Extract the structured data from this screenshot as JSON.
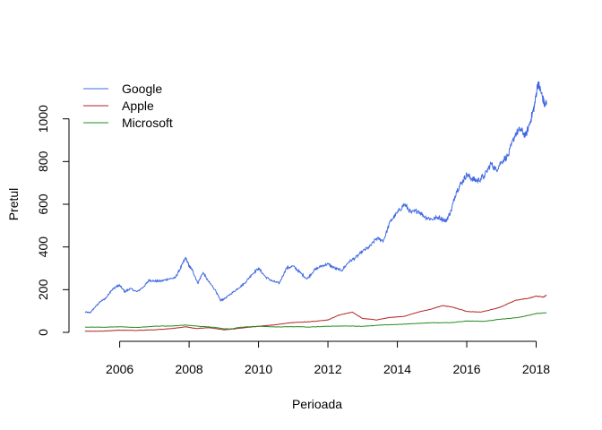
{
  "chart_data": {
    "type": "line",
    "title": "",
    "xlabel": "Perioada",
    "ylabel": "Pretul",
    "xlim": [
      2004.9,
      2018.4
    ],
    "ylim": [
      0,
      1200
    ],
    "x_ticks": [
      2006,
      2008,
      2010,
      2012,
      2014,
      2016,
      2018
    ],
    "x_tick_labels": [
      "2006",
      "2008",
      "2010",
      "2012",
      "2014",
      "2016",
      "2018"
    ],
    "y_ticks": [
      0,
      200,
      400,
      600,
      800,
      1000
    ],
    "y_tick_labels": [
      "0",
      "200",
      "400",
      "600",
      "800",
      "1000"
    ],
    "grid": false,
    "legend_position": "top-left",
    "legend_border": false,
    "series": [
      {
        "name": "Google",
        "color": "#4169E1",
        "points": [
          [
            2005.0,
            95
          ],
          [
            2005.15,
            92
          ],
          [
            2005.3,
            120
          ],
          [
            2005.45,
            145
          ],
          [
            2005.6,
            160
          ],
          [
            2005.75,
            195
          ],
          [
            2005.9,
            215
          ],
          [
            2006.0,
            220
          ],
          [
            2006.15,
            190
          ],
          [
            2006.3,
            205
          ],
          [
            2006.5,
            190
          ],
          [
            2006.7,
            215
          ],
          [
            2006.85,
            245
          ],
          [
            2007.0,
            240
          ],
          [
            2007.2,
            240
          ],
          [
            2007.4,
            250
          ],
          [
            2007.6,
            255
          ],
          [
            2007.75,
            300
          ],
          [
            2007.9,
            350
          ],
          [
            2008.0,
            310
          ],
          [
            2008.1,
            290
          ],
          [
            2008.25,
            230
          ],
          [
            2008.4,
            280
          ],
          [
            2008.55,
            240
          ],
          [
            2008.75,
            200
          ],
          [
            2008.9,
            150
          ],
          [
            2009.0,
            155
          ],
          [
            2009.2,
            180
          ],
          [
            2009.4,
            205
          ],
          [
            2009.6,
            230
          ],
          [
            2009.8,
            270
          ],
          [
            2010.0,
            300
          ],
          [
            2010.2,
            260
          ],
          [
            2010.4,
            240
          ],
          [
            2010.6,
            230
          ],
          [
            2010.8,
            300
          ],
          [
            2011.0,
            310
          ],
          [
            2011.2,
            280
          ],
          [
            2011.4,
            250
          ],
          [
            2011.6,
            290
          ],
          [
            2011.8,
            310
          ],
          [
            2012.0,
            320
          ],
          [
            2012.2,
            300
          ],
          [
            2012.4,
            290
          ],
          [
            2012.6,
            330
          ],
          [
            2012.8,
            350
          ],
          [
            2013.0,
            380
          ],
          [
            2013.2,
            400
          ],
          [
            2013.4,
            440
          ],
          [
            2013.6,
            430
          ],
          [
            2013.8,
            520
          ],
          [
            2014.0,
            560
          ],
          [
            2014.2,
            600
          ],
          [
            2014.4,
            560
          ],
          [
            2014.6,
            570
          ],
          [
            2014.8,
            540
          ],
          [
            2015.0,
            530
          ],
          [
            2015.2,
            540
          ],
          [
            2015.4,
            520
          ],
          [
            2015.55,
            570
          ],
          [
            2015.7,
            660
          ],
          [
            2015.85,
            700
          ],
          [
            2016.0,
            740
          ],
          [
            2016.15,
            720
          ],
          [
            2016.3,
            710
          ],
          [
            2016.5,
            730
          ],
          [
            2016.7,
            790
          ],
          [
            2016.85,
            760
          ],
          [
            2017.0,
            800
          ],
          [
            2017.2,
            830
          ],
          [
            2017.4,
            930
          ],
          [
            2017.55,
            950
          ],
          [
            2017.7,
            920
          ],
          [
            2017.85,
            1000
          ],
          [
            2017.95,
            1060
          ],
          [
            2018.05,
            1170
          ],
          [
            2018.15,
            1120
          ],
          [
            2018.25,
            1060
          ],
          [
            2018.3,
            1080
          ]
        ]
      },
      {
        "name": "Apple",
        "color": "#B22222",
        "points": [
          [
            2005.0,
            5
          ],
          [
            2005.5,
            6
          ],
          [
            2006.0,
            10
          ],
          [
            2006.5,
            9
          ],
          [
            2007.0,
            12
          ],
          [
            2007.5,
            18
          ],
          [
            2007.9,
            26
          ],
          [
            2008.2,
            18
          ],
          [
            2008.6,
            22
          ],
          [
            2009.0,
            12
          ],
          [
            2009.3,
            16
          ],
          [
            2009.6,
            22
          ],
          [
            2010.0,
            28
          ],
          [
            2010.5,
            36
          ],
          [
            2011.0,
            46
          ],
          [
            2011.5,
            50
          ],
          [
            2012.0,
            58
          ],
          [
            2012.3,
            80
          ],
          [
            2012.7,
            95
          ],
          [
            2013.0,
            65
          ],
          [
            2013.4,
            58
          ],
          [
            2013.8,
            70
          ],
          [
            2014.2,
            75
          ],
          [
            2014.6,
            95
          ],
          [
            2015.0,
            110
          ],
          [
            2015.3,
            125
          ],
          [
            2015.6,
            118
          ],
          [
            2016.0,
            98
          ],
          [
            2016.4,
            95
          ],
          [
            2016.8,
            110
          ],
          [
            2017.0,
            120
          ],
          [
            2017.4,
            150
          ],
          [
            2017.8,
            160
          ],
          [
            2018.0,
            170
          ],
          [
            2018.2,
            165
          ],
          [
            2018.3,
            175
          ]
        ]
      },
      {
        "name": "Microsoft",
        "color": "#228B22",
        "points": [
          [
            2005.0,
            25
          ],
          [
            2005.5,
            24
          ],
          [
            2006.0,
            26
          ],
          [
            2006.5,
            23
          ],
          [
            2007.0,
            29
          ],
          [
            2007.5,
            30
          ],
          [
            2007.9,
            34
          ],
          [
            2008.3,
            28
          ],
          [
            2008.7,
            24
          ],
          [
            2009.0,
            17
          ],
          [
            2009.2,
            16
          ],
          [
            2009.5,
            24
          ],
          [
            2010.0,
            29
          ],
          [
            2010.5,
            25
          ],
          [
            2011.0,
            27
          ],
          [
            2011.5,
            25
          ],
          [
            2012.0,
            29
          ],
          [
            2012.5,
            30
          ],
          [
            2013.0,
            28
          ],
          [
            2013.5,
            34
          ],
          [
            2014.0,
            37
          ],
          [
            2014.5,
            41
          ],
          [
            2015.0,
            45
          ],
          [
            2015.5,
            45
          ],
          [
            2016.0,
            53
          ],
          [
            2016.5,
            52
          ],
          [
            2017.0,
            62
          ],
          [
            2017.5,
            70
          ],
          [
            2018.0,
            88
          ],
          [
            2018.3,
            92
          ]
        ]
      }
    ]
  }
}
